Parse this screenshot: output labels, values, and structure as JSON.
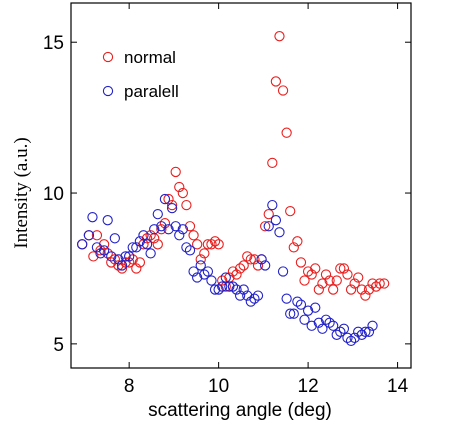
{
  "chart_data": {
    "type": "scatter",
    "title": "",
    "xlabel": "scattering angle (deg)",
    "ylabel": "Intensity (a.u.)",
    "xlim": [
      6.7,
      14.3
    ],
    "ylim": [
      4.2,
      16.3
    ],
    "xticks": [
      8,
      10,
      12,
      14
    ],
    "yticks": [
      5,
      10,
      15
    ],
    "grid": false,
    "legend_position": "top-left",
    "marker": "open-circle",
    "series": [
      {
        "name": "normal",
        "color": "#e8201f",
        "points": [
          [
            6.95,
            8.3
          ],
          [
            7.1,
            8.6
          ],
          [
            7.2,
            7.9
          ],
          [
            7.28,
            8.6
          ],
          [
            7.36,
            8.1
          ],
          [
            7.44,
            8.3
          ],
          [
            7.52,
            8.0
          ],
          [
            7.6,
            7.7
          ],
          [
            7.68,
            7.8
          ],
          [
            7.76,
            7.6
          ],
          [
            7.84,
            7.5
          ],
          [
            7.92,
            7.7
          ],
          [
            8.0,
            7.7
          ],
          [
            8.08,
            7.8
          ],
          [
            8.16,
            7.5
          ],
          [
            8.24,
            7.7
          ],
          [
            8.32,
            8.3
          ],
          [
            8.4,
            8.5
          ],
          [
            8.48,
            8.6
          ],
          [
            8.56,
            8.5
          ],
          [
            8.64,
            8.3
          ],
          [
            8.72,
            8.8
          ],
          [
            8.8,
            9.0
          ],
          [
            8.88,
            9.8
          ],
          [
            8.96,
            9.6
          ],
          [
            9.04,
            10.7
          ],
          [
            9.12,
            10.2
          ],
          [
            9.2,
            10.0
          ],
          [
            9.28,
            9.6
          ],
          [
            9.36,
            8.9
          ],
          [
            9.44,
            8.6
          ],
          [
            9.52,
            8.3
          ],
          [
            9.6,
            7.8
          ],
          [
            9.68,
            8.0
          ],
          [
            9.76,
            8.3
          ],
          [
            9.84,
            8.3
          ],
          [
            9.92,
            8.4
          ],
          [
            10.0,
            8.3
          ],
          [
            10.08,
            7.1
          ],
          [
            10.16,
            6.9
          ],
          [
            10.24,
            7.2
          ],
          [
            10.32,
            7.4
          ],
          [
            10.4,
            7.3
          ],
          [
            10.48,
            7.5
          ],
          [
            10.56,
            7.6
          ],
          [
            10.64,
            7.9
          ],
          [
            10.72,
            7.8
          ],
          [
            10.8,
            7.8
          ],
          [
            10.88,
            7.6
          ],
          [
            10.96,
            7.8
          ],
          [
            11.04,
            8.9
          ],
          [
            11.12,
            9.3
          ],
          [
            11.2,
            11.0
          ],
          [
            11.28,
            13.7
          ],
          [
            11.36,
            15.2
          ],
          [
            11.44,
            13.4
          ],
          [
            11.52,
            12.0
          ],
          [
            11.6,
            9.4
          ],
          [
            11.68,
            8.2
          ],
          [
            11.76,
            8.4
          ],
          [
            11.84,
            7.7
          ],
          [
            11.92,
            7.1
          ],
          [
            12.0,
            7.4
          ],
          [
            12.08,
            7.3
          ],
          [
            12.16,
            7.5
          ],
          [
            12.24,
            6.8
          ],
          [
            12.32,
            7.0
          ],
          [
            12.4,
            7.3
          ],
          [
            12.48,
            7.1
          ],
          [
            12.56,
            6.8
          ],
          [
            12.64,
            7.1
          ],
          [
            12.72,
            7.5
          ],
          [
            12.8,
            7.5
          ],
          [
            12.88,
            7.3
          ],
          [
            12.96,
            6.8
          ],
          [
            13.04,
            7.0
          ],
          [
            13.12,
            7.2
          ],
          [
            13.2,
            6.8
          ],
          [
            13.28,
            6.6
          ],
          [
            13.36,
            6.8
          ],
          [
            13.44,
            7.0
          ],
          [
            13.52,
            6.9
          ],
          [
            13.6,
            7.0
          ],
          [
            13.7,
            7.0
          ]
        ]
      },
      {
        "name": "paralell",
        "color": "#2222c8",
        "points": [
          [
            6.95,
            8.3
          ],
          [
            7.1,
            8.6
          ],
          [
            7.18,
            9.2
          ],
          [
            7.28,
            8.2
          ],
          [
            7.36,
            8.0
          ],
          [
            7.44,
            8.1
          ],
          [
            7.52,
            9.1
          ],
          [
            7.6,
            7.9
          ],
          [
            7.68,
            8.5
          ],
          [
            7.76,
            7.8
          ],
          [
            7.84,
            7.6
          ],
          [
            7.92,
            7.9
          ],
          [
            8.0,
            7.9
          ],
          [
            8.08,
            8.2
          ],
          [
            8.16,
            8.2
          ],
          [
            8.24,
            8.4
          ],
          [
            8.32,
            8.6
          ],
          [
            8.4,
            8.3
          ],
          [
            8.48,
            8.0
          ],
          [
            8.56,
            8.8
          ],
          [
            8.64,
            9.3
          ],
          [
            8.72,
            8.9
          ],
          [
            8.8,
            9.8
          ],
          [
            8.88,
            8.8
          ],
          [
            8.96,
            9.5
          ],
          [
            9.04,
            8.9
          ],
          [
            9.12,
            8.6
          ],
          [
            9.2,
            8.8
          ],
          [
            9.28,
            8.2
          ],
          [
            9.36,
            8.1
          ],
          [
            9.44,
            7.4
          ],
          [
            9.52,
            7.2
          ],
          [
            9.6,
            7.6
          ],
          [
            9.68,
            7.3
          ],
          [
            9.76,
            7.4
          ],
          [
            9.84,
            7.1
          ],
          [
            9.92,
            6.8
          ],
          [
            10.0,
            6.8
          ],
          [
            10.08,
            6.9
          ],
          [
            10.16,
            7.2
          ],
          [
            10.24,
            6.9
          ],
          [
            10.32,
            6.9
          ],
          [
            10.4,
            6.8
          ],
          [
            10.48,
            6.6
          ],
          [
            10.56,
            6.8
          ],
          [
            10.64,
            6.6
          ],
          [
            10.72,
            6.4
          ],
          [
            10.8,
            6.5
          ],
          [
            10.88,
            6.6
          ],
          [
            10.96,
            7.8
          ],
          [
            11.04,
            7.6
          ],
          [
            11.12,
            8.9
          ],
          [
            11.2,
            9.6
          ],
          [
            11.28,
            9.1
          ],
          [
            11.36,
            8.7
          ],
          [
            11.44,
            7.4
          ],
          [
            11.52,
            6.5
          ],
          [
            11.6,
            6.0
          ],
          [
            11.68,
            6.0
          ],
          [
            11.76,
            6.4
          ],
          [
            11.84,
            6.3
          ],
          [
            11.92,
            5.8
          ],
          [
            12.0,
            6.1
          ],
          [
            12.08,
            5.6
          ],
          [
            12.16,
            6.2
          ],
          [
            12.24,
            5.7
          ],
          [
            12.32,
            5.5
          ],
          [
            12.4,
            5.8
          ],
          [
            12.48,
            5.7
          ],
          [
            12.56,
            5.6
          ],
          [
            12.64,
            5.3
          ],
          [
            12.72,
            5.4
          ],
          [
            12.8,
            5.5
          ],
          [
            12.88,
            5.2
          ],
          [
            12.96,
            5.1
          ],
          [
            13.04,
            5.2
          ],
          [
            13.12,
            5.4
          ],
          [
            13.2,
            5.3
          ],
          [
            13.28,
            5.4
          ],
          [
            13.36,
            5.4
          ],
          [
            13.44,
            5.6
          ]
        ]
      }
    ]
  }
}
